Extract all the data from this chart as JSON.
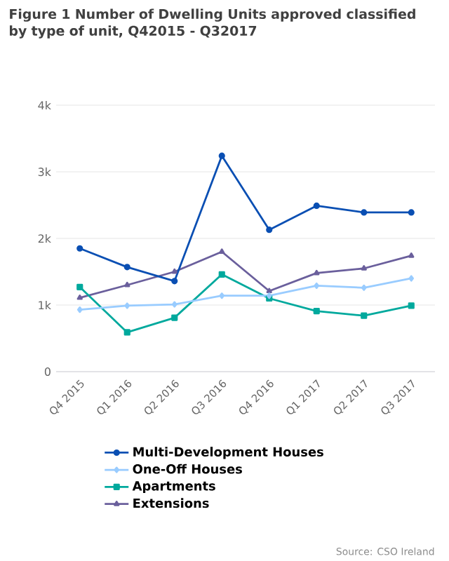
{
  "chart_data": {
    "type": "line",
    "title": "Figure 1 Number of Dwelling Units approved classified by type of unit, Q42015 - Q32017",
    "categories": [
      "Q4 2015",
      "Q1 2016",
      "Q2 2016",
      "Q3 2016",
      "Q4 2016",
      "Q1 2017",
      "Q2 2017",
      "Q3 2017"
    ],
    "series": [
      {
        "name": "Multi-Development Houses",
        "color": "#0a4fb3",
        "marker": "circle",
        "values": [
          1850,
          1570,
          1360,
          3240,
          2130,
          2490,
          2390,
          2390
        ]
      },
      {
        "name": "One-Off Houses",
        "color": "#99ccff",
        "marker": "diamond",
        "values": [
          930,
          990,
          1010,
          1140,
          1140,
          1290,
          1260,
          1400
        ]
      },
      {
        "name": "Apartments",
        "color": "#00a99d",
        "marker": "square",
        "values": [
          1270,
          590,
          810,
          1460,
          1100,
          910,
          840,
          990
        ]
      },
      {
        "name": "Extensions",
        "color": "#6a5f9c",
        "marker": "triangle",
        "values": [
          1110,
          1300,
          1500,
          1800,
          1210,
          1480,
          1550,
          1740
        ]
      }
    ],
    "ylim": [
      0,
      4000
    ],
    "yticks": [
      0,
      {
        "value": 1000,
        "label": "1k"
      },
      {
        "value": 2000,
        "label": "2k"
      },
      {
        "value": 3000,
        "label": "3k"
      },
      {
        "value": 4000,
        "label": "4k"
      }
    ],
    "grid": "y",
    "legend": "bottom",
    "annotations": [
      "Source: CSO Ireland"
    ]
  }
}
